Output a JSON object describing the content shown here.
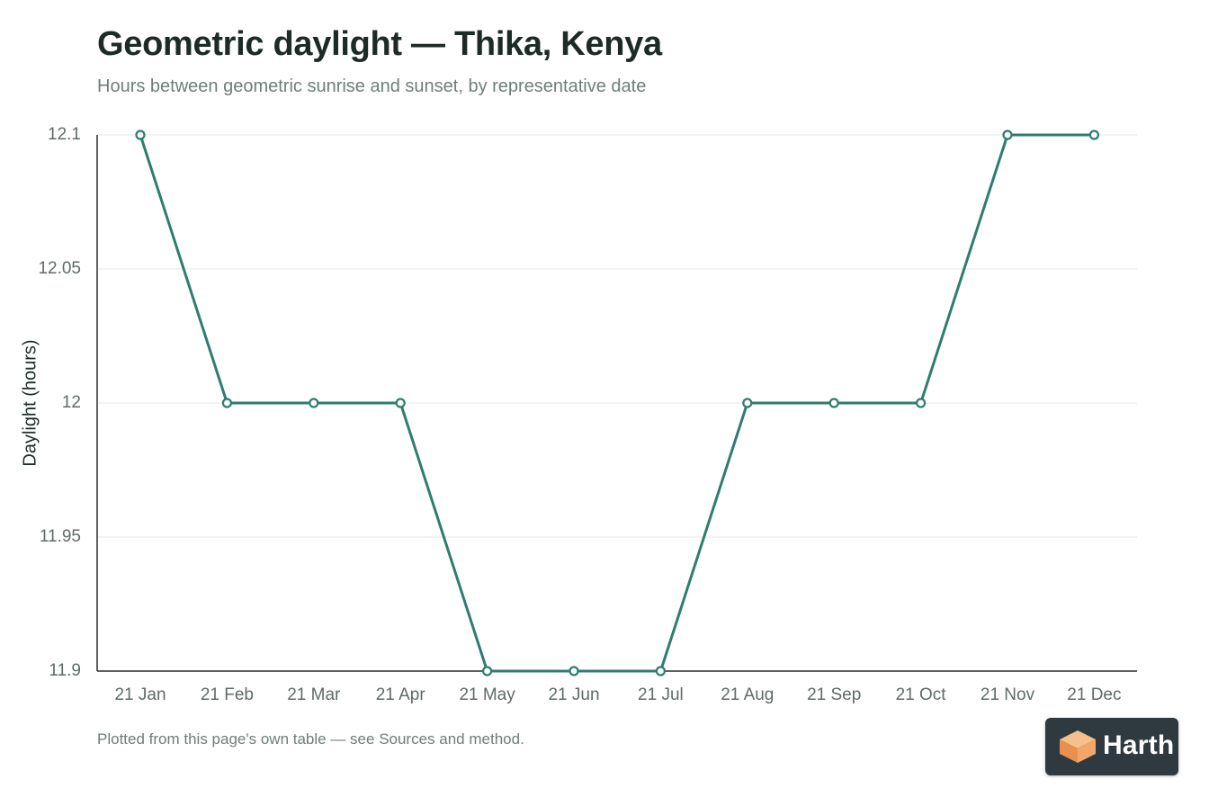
{
  "chart_data": {
    "type": "line",
    "title": "Geometric daylight — Thika, Kenya",
    "subtitle": "Hours between geometric sunrise and sunset, by representative date",
    "xlabel": "",
    "ylabel": "Daylight (hours)",
    "categories": [
      "21 Jan",
      "21 Feb",
      "21 Mar",
      "21 Apr",
      "21 May",
      "21 Jun",
      "21 Jul",
      "21 Aug",
      "21 Sep",
      "21 Oct",
      "21 Nov",
      "21 Dec"
    ],
    "values": [
      12.1,
      12.0,
      12.0,
      12.0,
      11.9,
      11.9,
      11.9,
      12.0,
      12.0,
      12.0,
      12.1,
      12.1
    ],
    "ylim": [
      11.9,
      12.1
    ],
    "yticks": [
      "11.9",
      "11.95",
      "12",
      "12.05",
      "12.1"
    ],
    "grid": true,
    "legend": "none",
    "line_color": "#2e7d6e"
  },
  "footnote": "Plotted from this page's own table — see Sources and method.",
  "badge": {
    "text": "Harth",
    "icon": "cube-logo-icon"
  }
}
